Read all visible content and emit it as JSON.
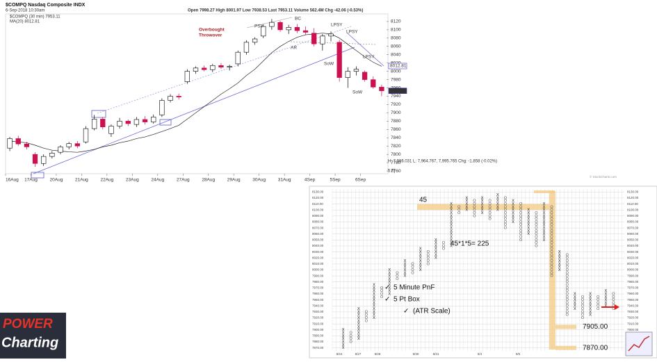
{
  "chart_data": [
    {
      "type": "candlestick",
      "title": "$COMPQ Nasdaq Composite INDX",
      "subtitle": "6-Sep-2018 10:30am",
      "quote": "Open 7998.27  High 8001.97  Low 7938.53  Last 7953.11  Volume 562.4M  Chg -42.06 (-0.53%)",
      "legend": [
        "$COMPQ (30 min) 7953.11",
        "MA(20) 8012.81"
      ],
      "categories": [
        "16Aug",
        "17Aug",
        "20Aug",
        "21Aug",
        "22Aug",
        "23Aug",
        "24Aug",
        "27Aug",
        "28Aug",
        "29Aug",
        "30Aug",
        "31Aug",
        "4Sep",
        "5Sep",
        "6Sep"
      ],
      "ohlc": [
        [
          7815,
          7842,
          7808,
          7838
        ],
        [
          7838,
          7845,
          7820,
          7825
        ],
        [
          7825,
          7830,
          7812,
          7818
        ],
        [
          7800,
          7805,
          7770,
          7778
        ],
        [
          7778,
          7800,
          7772,
          7795
        ],
        [
          7795,
          7808,
          7790,
          7803
        ],
        [
          7805,
          7822,
          7800,
          7818
        ],
        [
          7818,
          7830,
          7812,
          7826
        ],
        [
          7826,
          7832,
          7815,
          7820
        ],
        [
          7830,
          7868,
          7826,
          7862
        ],
        [
          7862,
          7895,
          7858,
          7885
        ],
        [
          7885,
          7890,
          7860,
          7866
        ],
        [
          7850,
          7872,
          7842,
          7868
        ],
        [
          7868,
          7888,
          7862,
          7880
        ],
        [
          7880,
          7884,
          7868,
          7874
        ],
        [
          7872,
          7890,
          7866,
          7884
        ],
        [
          7884,
          7892,
          7872,
          7878
        ],
        [
          7878,
          7896,
          7874,
          7890
        ],
        [
          7895,
          7935,
          7890,
          7930
        ],
        [
          7930,
          7945,
          7925,
          7940
        ],
        [
          7940,
          7946,
          7932,
          7938
        ],
        [
          7975,
          8005,
          7970,
          8000
        ],
        [
          8000,
          8012,
          7994,
          8008
        ],
        [
          8008,
          8014,
          8000,
          8004
        ],
        [
          8004,
          8018,
          7998,
          8014
        ],
        [
          8014,
          8020,
          8006,
          8010
        ],
        [
          8010,
          8016,
          8002,
          8012
        ],
        [
          8018,
          8050,
          8012,
          8046
        ],
        [
          8046,
          8075,
          8040,
          8070
        ],
        [
          8070,
          8082,
          8064,
          8078
        ],
        [
          8085,
          8112,
          8080,
          8108
        ],
        [
          8108,
          8126,
          8100,
          8118
        ],
        [
          8118,
          8122,
          8095,
          8100
        ],
        [
          8100,
          8112,
          8090,
          8106
        ],
        [
          8106,
          8114,
          8092,
          8098
        ],
        [
          8098,
          8108,
          8088,
          8094
        ],
        [
          8092,
          8104,
          8060,
          8066
        ],
        [
          8066,
          8090,
          8050,
          8085
        ],
        [
          8085,
          8096,
          8072,
          8090
        ],
        [
          8070,
          8076,
          7975,
          7985
        ],
        [
          7985,
          8010,
          7960,
          8000
        ],
        [
          8000,
          8012,
          7990,
          8005
        ],
        [
          7998,
          8002,
          7975,
          7980
        ],
        [
          7980,
          7988,
          7958,
          7962
        ],
        [
          7962,
          7968,
          7940,
          7953
        ]
      ],
      "up_color": "#000000",
      "down_color": "#cc1050",
      "ma": {
        "name": "MA(20)",
        "color": "#222222",
        "values": [
          7832,
          7830,
          7828,
          7822,
          7815,
          7810,
          7808,
          7806,
          7805,
          7808,
          7812,
          7818,
          7822,
          7828,
          7832,
          7838,
          7842,
          7848,
          7855,
          7862,
          7870,
          7885,
          7900,
          7915,
          7930,
          7945,
          7958,
          7972,
          7990,
          8005,
          8025,
          8045,
          8060,
          8072,
          8082,
          8088,
          8090,
          8092,
          8090,
          8080,
          8065,
          8050,
          8035,
          8022,
          8012
        ]
      },
      "ylim": [
        7740,
        8140
      ],
      "yticks": [
        7760,
        7780,
        7800,
        7820,
        7840,
        7860,
        7880,
        7900,
        7920,
        7940,
        7960,
        7980,
        8000,
        8020,
        8040,
        8060,
        8080,
        8100,
        8120
      ],
      "price_tags": [
        {
          "value": 8012.81,
          "label": "8012.81"
        },
        {
          "value": 7953.11,
          "label": "7953.11"
        }
      ],
      "annotations": [
        "PSY",
        "BC",
        "LPSY",
        "LPSY",
        "AR",
        "SoW",
        "SoW",
        "LPSY",
        "Overbought",
        "Throwover"
      ],
      "footer": "H: 7,986.031  L: 7,964.767, 7,995.765  Chg: -1.858 (-0.02%)",
      "footer2": "5.0]",
      "credit": "© StockCharts.com"
    },
    {
      "type": "pnf",
      "ylim": [
        7865,
        8135
      ],
      "yticks": [
        {
          "value": 7870,
          "label": "7870.00"
        },
        {
          "value": 7880,
          "label": "7880.00"
        },
        {
          "value": 7890,
          "label": "7890.00"
        },
        {
          "value": 7900,
          "label": "7900.00"
        },
        {
          "value": 7910,
          "label": "7910.00"
        },
        {
          "value": 7920,
          "label": "7920.00"
        },
        {
          "value": 7930,
          "label": "7930.00"
        },
        {
          "value": 7940,
          "label": "7940.00"
        },
        {
          "value": 7950,
          "label": "7950.00"
        },
        {
          "value": 7960,
          "label": "7960.00"
        },
        {
          "value": 7970,
          "label": "7970.00"
        },
        {
          "value": 7980,
          "label": "7980.00"
        },
        {
          "value": 7990,
          "label": "7990.00"
        },
        {
          "value": 8000,
          "label": "8000.00"
        },
        {
          "value": 8010,
          "label": "8010.00"
        },
        {
          "value": 8020,
          "label": "8020.00"
        },
        {
          "value": 8030,
          "label": "8030.00"
        },
        {
          "value": 8040,
          "label": "8040.00"
        },
        {
          "value": 8050,
          "label": "8050.00"
        },
        {
          "value": 8060,
          "label": "8060.00"
        },
        {
          "value": 8070,
          "label": "8070.00"
        },
        {
          "value": 8080,
          "label": "8080.00"
        },
        {
          "value": 8090,
          "label": "8090.00"
        },
        {
          "value": 8100,
          "label": "8100.00"
        },
        {
          "value": 8110,
          "label": "8110.00"
        },
        {
          "value": 8120,
          "label": "8120.00"
        },
        {
          "value": 8130,
          "label": "8130.00"
        }
      ],
      "box_size": 5,
      "columns": [
        {
          "kind": "X",
          "low": 7870,
          "high": 7900
        },
        {
          "kind": "O",
          "low": 7880,
          "high": 7895
        },
        {
          "kind": "X",
          "low": 7885,
          "high": 7935
        },
        {
          "kind": "O",
          "low": 7915,
          "high": 7930
        },
        {
          "kind": "X",
          "low": 7920,
          "high": 7975
        },
        {
          "kind": "O",
          "low": 7955,
          "high": 7970
        },
        {
          "kind": "X",
          "low": 7960,
          "high": 8000
        },
        {
          "kind": "O",
          "low": 7985,
          "high": 7995
        },
        {
          "kind": "X",
          "low": 7990,
          "high": 8015
        },
        {
          "kind": "O",
          "low": 7995,
          "high": 8010
        },
        {
          "kind": "X",
          "low": 8000,
          "high": 8035
        },
        {
          "kind": "O",
          "low": 8010,
          "high": 8030
        },
        {
          "kind": "X",
          "low": 8020,
          "high": 8050
        },
        {
          "kind": "O",
          "low": 8035,
          "high": 8045
        },
        {
          "kind": "X",
          "low": 8040,
          "high": 8110
        },
        {
          "kind": "O",
          "low": 8095,
          "high": 8105
        },
        {
          "kind": "X",
          "low": 8100,
          "high": 8120
        },
        {
          "kind": "O",
          "low": 8090,
          "high": 8115
        },
        {
          "kind": "X",
          "low": 8095,
          "high": 8120
        },
        {
          "kind": "O",
          "low": 8085,
          "high": 8115
        },
        {
          "kind": "X",
          "low": 8100,
          "high": 8125
        },
        {
          "kind": "O",
          "low": 8070,
          "high": 8120
        },
        {
          "kind": "X",
          "low": 8080,
          "high": 8115
        },
        {
          "kind": "O",
          "low": 8050,
          "high": 8110
        },
        {
          "kind": "X",
          "low": 8060,
          "high": 8100
        },
        {
          "kind": "O",
          "low": 8040,
          "high": 8095
        },
        {
          "kind": "X",
          "low": 8050,
          "high": 8110
        },
        {
          "kind": "O",
          "low": 7990,
          "high": 8105
        },
        {
          "kind": "X",
          "low": 8000,
          "high": 8030
        },
        {
          "kind": "O",
          "low": 7925,
          "high": 8025
        },
        {
          "kind": "X",
          "low": 7935,
          "high": 7960
        },
        {
          "kind": "O",
          "low": 7920,
          "high": 7955
        },
        {
          "kind": "X",
          "low": 7925,
          "high": 7960
        },
        {
          "kind": "O",
          "low": 7935,
          "high": 7955
        },
        {
          "kind": "X",
          "low": 7940,
          "high": 7965
        },
        {
          "kind": "O",
          "low": 7935,
          "high": 7960
        }
      ],
      "x_labels": [
        "8/24",
        "8/27",
        "8/28",
        "8/30",
        "8/31",
        "9/4",
        "9/5"
      ],
      "count_label": "45",
      "formula": "45*1*5= 225",
      "notes": [
        "5 Minute PnF",
        "5 Pt Box",
        "(ATR Scale)"
      ],
      "levels": [
        {
          "value": 7905,
          "label": "7905.00"
        },
        {
          "value": 7870,
          "label": "7870.00"
        }
      ],
      "highlight_color": "#f3c983"
    }
  ],
  "logo": {
    "line1": "POWER",
    "line2": "Charting"
  }
}
